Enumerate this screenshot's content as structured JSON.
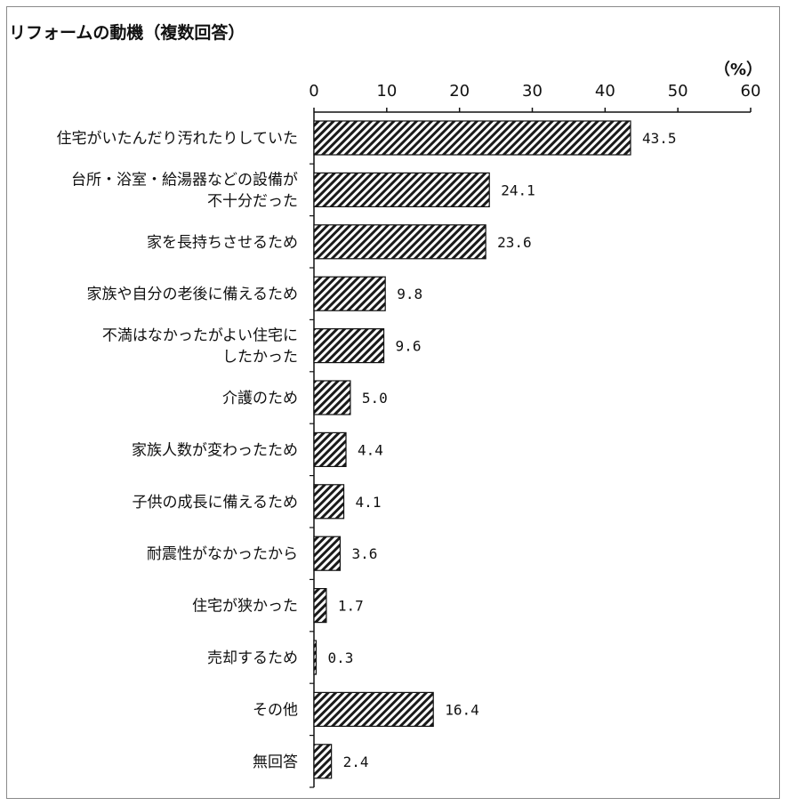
{
  "chart_data": {
    "type": "bar",
    "orientation": "horizontal",
    "title": "リフォームの動機（複数回答）",
    "unit": "（%）",
    "xlim": [
      0,
      60
    ],
    "xticks": [
      "0",
      "10",
      "20",
      "30",
      "40",
      "50",
      "60"
    ],
    "bar_pattern": "diagonal-hatch",
    "categories": [
      [
        "住宅がいたんだり汚れたりしていた"
      ],
      [
        "台所・浴室・給湯器などの設備が",
        "不十分だった"
      ],
      [
        "家を長持ちさせるため"
      ],
      [
        "家族や自分の老後に備えるため"
      ],
      [
        "不満はなかったがよい住宅に",
        "したかった"
      ],
      [
        "介護のため"
      ],
      [
        "家族人数が変わったため"
      ],
      [
        "子供の成長に備えるため"
      ],
      [
        "耐震性がなかったから"
      ],
      [
        "住宅が狭かった"
      ],
      [
        "売却するため"
      ],
      [
        "その他"
      ],
      [
        "無回答"
      ]
    ],
    "values": [
      43.5,
      24.1,
      23.6,
      9.8,
      9.6,
      5.0,
      4.4,
      4.1,
      3.6,
      1.7,
      0.3,
      16.4,
      2.4
    ],
    "value_labels": [
      "43.5",
      "24.1",
      "23.6",
      "9.8",
      "9.6",
      "5.0",
      "4.4",
      "4.1",
      "3.6",
      "1.7",
      "0.3",
      "16.4",
      "2.4"
    ],
    "grid": false,
    "legend": "none"
  }
}
